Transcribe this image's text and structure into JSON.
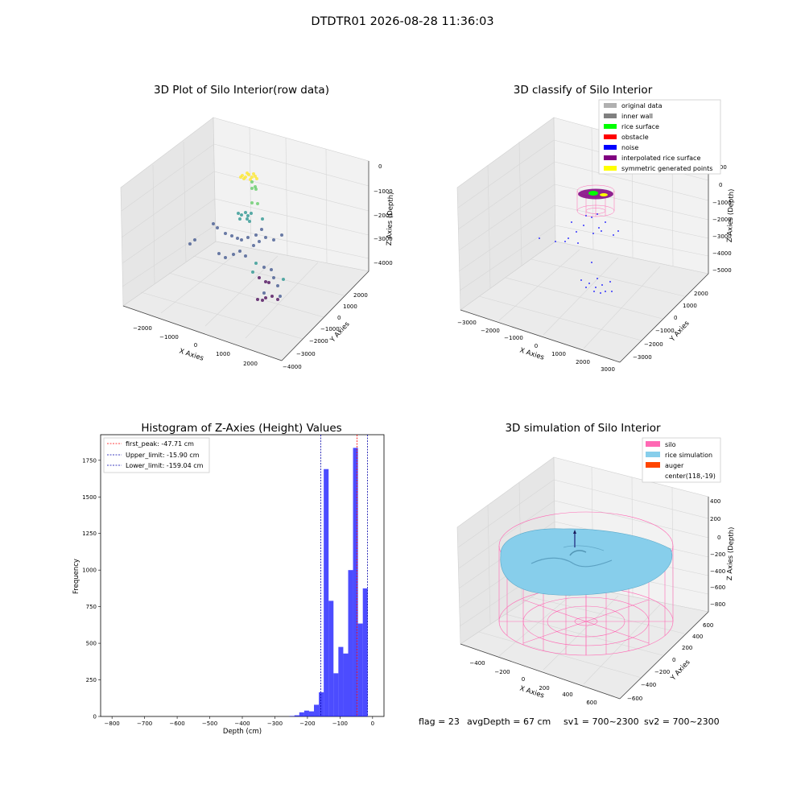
{
  "suptitle": "DTDTR01 2026-08-28 11:36:03",
  "status_line": {
    "flag": "flag = 23",
    "avg_depth": "avgDepth = 67 cm",
    "sv1": "sv1 = 700~2300",
    "sv2": "sv2 = 700~2300"
  },
  "chart_data": [
    {
      "type": "scatter",
      "title": "3D Plot of Silo Interior(row data)",
      "xlabel": "X Axies",
      "ylabel": "Y Axies",
      "zlabel": "Z Axies (Depth)",
      "xticks": [
        "−2000",
        "−1000",
        "0",
        "1000",
        "2000"
      ],
      "yticks": [
        "−4000",
        "−3000",
        "−2000",
        "−1000",
        "0",
        "1000",
        "2000"
      ],
      "zticks": [
        "0",
        "−1000",
        "−2000",
        "−3000",
        "−4000"
      ],
      "colormap": "viridis",
      "grid": true
    },
    {
      "type": "scatter",
      "title": "3D classify of Silo Interior",
      "xlabel": "X Axies",
      "ylabel": "Y Axies",
      "zlabel": "Z Axies (Depth)",
      "xticks": [
        "−3000",
        "−2000",
        "−1000",
        "0",
        "1000",
        "2000",
        "3000"
      ],
      "yticks": [
        "−3000",
        "−2000",
        "−1000",
        "0",
        "1000",
        "2000"
      ],
      "zticks": [
        "1000",
        "0",
        "−1000",
        "−2000",
        "−3000",
        "−4000",
        "−5000"
      ],
      "legend_position": "top-right",
      "legend": [
        {
          "label": "original data",
          "color": "#b0b0b0"
        },
        {
          "label": "inner wall",
          "color": "#808080"
        },
        {
          "label": "rice surface",
          "color": "#00ff00"
        },
        {
          "label": "obstacle",
          "color": "#ff0000"
        },
        {
          "label": "noise",
          "color": "#0000ff"
        },
        {
          "label": "interpolated rice surface",
          "color": "#800080"
        },
        {
          "label": "symmetric generated points",
          "color": "#ffff00"
        }
      ],
      "grid": true
    },
    {
      "type": "bar",
      "title": "Histogram of Z-Axies (Height) Values",
      "xlabel": "Depth (cm)",
      "ylabel": "Frequency",
      "xlim": [
        -835,
        35
      ],
      "ylim": [
        0,
        1925
      ],
      "xticks": [
        -800,
        -700,
        -600,
        -500,
        -400,
        -300,
        -200,
        -100,
        0
      ],
      "yticks": [
        0,
        250,
        500,
        750,
        1000,
        1250,
        1500,
        1750
      ],
      "bins": [
        {
          "x0": -255,
          "x1": -240,
          "value": 3
        },
        {
          "x0": -240,
          "x1": -225,
          "value": 8
        },
        {
          "x0": -225,
          "x1": -210,
          "value": 28
        },
        {
          "x0": -210,
          "x1": -195,
          "value": 40
        },
        {
          "x0": -195,
          "x1": -180,
          "value": 35
        },
        {
          "x0": -180,
          "x1": -165,
          "value": 80
        },
        {
          "x0": -165,
          "x1": -150,
          "value": 165
        },
        {
          "x0": -150,
          "x1": -135,
          "value": 1690
        },
        {
          "x0": -135,
          "x1": -120,
          "value": 790
        },
        {
          "x0": -120,
          "x1": -105,
          "value": 295
        },
        {
          "x0": -105,
          "x1": -90,
          "value": 475
        },
        {
          "x0": -90,
          "x1": -75,
          "value": 430
        },
        {
          "x0": -75,
          "x1": -60,
          "value": 1000
        },
        {
          "x0": -60,
          "x1": -45,
          "value": 1835
        },
        {
          "x0": -45,
          "x1": -30,
          "value": 635
        },
        {
          "x0": -30,
          "x1": -15,
          "value": 875
        }
      ],
      "bar_color": "#0000ff",
      "lines": [
        {
          "label": "first_peak: -47.71 cm",
          "x": -47.71,
          "color": "#ff0000"
        },
        {
          "label": "Upper_limit: -15.90 cm",
          "x": -15.9,
          "color": "#0000aa"
        },
        {
          "label": "Lower_limit: -159.04 cm",
          "x": -159.04,
          "color": "#0000aa"
        }
      ],
      "legend_position": "top-left"
    },
    {
      "type": "area",
      "title": "3D simulation of Silo Interior",
      "xlabel": "X Axies",
      "ylabel": "Y Axies",
      "zlabel": "Z Axies (Depth)",
      "xticks": [
        "−400",
        "−200",
        "0",
        "200",
        "400",
        "600"
      ],
      "yticks": [
        "−600",
        "−400",
        "−200",
        "0",
        "200",
        "400",
        "600"
      ],
      "zticks": [
        "400",
        "200",
        "0",
        "−200",
        "−400",
        "−600",
        "−800"
      ],
      "legend_position": "top-right",
      "legend": [
        {
          "label": "silo",
          "color": "#ff69b4"
        },
        {
          "label": "rice simulation",
          "color": "#87ceeb"
        },
        {
          "label": "auger",
          "color": "#ff4500"
        },
        {
          "label": "center(118,-19)",
          "color": ""
        }
      ],
      "grid": true
    }
  ]
}
